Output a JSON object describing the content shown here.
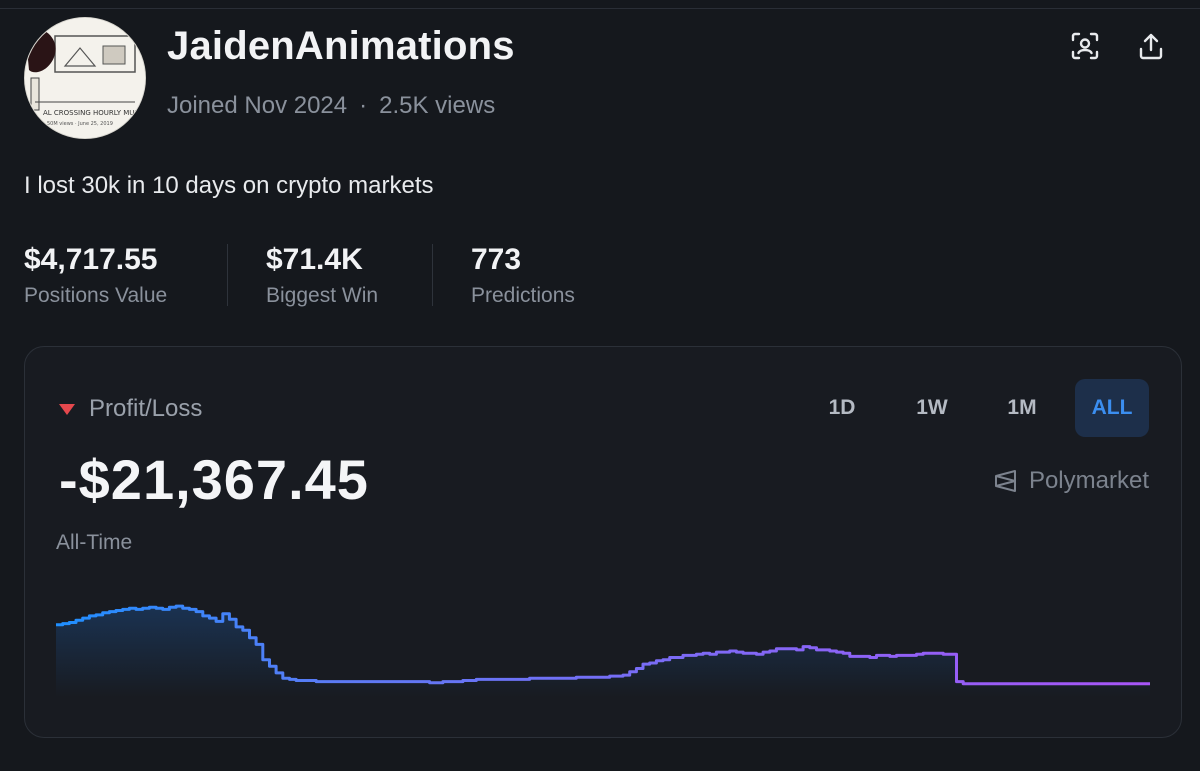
{
  "profile": {
    "username": "JaidenAnimations",
    "joined": "Joined Nov 2024",
    "views": "2.5K views",
    "bio": "I lost 30k in 10 days on crypto markets",
    "avatar_lines": [
      "AL CROSSING HOURLY MUSIC",
      "50M views · June 25, 2019"
    ]
  },
  "stats": [
    {
      "value": "$4,717.55",
      "label": "Positions Value"
    },
    {
      "value": "$71.4K",
      "label": "Biggest Win"
    },
    {
      "value": "773",
      "label": "Predictions"
    }
  ],
  "pnl": {
    "label": "Profit/Loss",
    "value": "-$21,367.45",
    "period": "All-Time",
    "brand": "Polymarket",
    "tabs": [
      "1D",
      "1W",
      "1M",
      "ALL"
    ],
    "active_tab": "ALL"
  },
  "colors": {
    "background": "#15181d",
    "loss_red": "#e5484d",
    "accent_blue": "#3b8ef0",
    "line_start": "#1f8fff",
    "line_end": "#a855f7"
  },
  "chart_data": {
    "type": "line",
    "title": "Profit/Loss All-Time",
    "xlabel": "",
    "ylabel": "",
    "ylim": [
      0,
      100
    ],
    "series": [
      {
        "name": "Profit/Loss",
        "values": [
          52,
          53,
          54,
          56,
          58,
          60,
          61,
          63,
          64,
          65,
          66,
          67,
          66,
          67,
          68,
          67,
          66,
          68,
          69,
          67,
          66,
          64,
          60,
          58,
          55,
          62,
          57,
          50,
          47,
          40,
          34,
          20,
          14,
          8,
          3,
          2,
          1,
          1,
          1,
          0,
          0,
          0,
          0,
          0,
          0,
          0,
          0,
          0,
          0,
          0,
          0,
          0,
          0,
          0,
          0,
          0,
          -1,
          -1,
          0,
          0,
          0,
          1,
          1,
          2,
          2,
          2,
          2,
          2,
          2,
          2,
          2,
          3,
          3,
          3,
          3,
          3,
          3,
          3,
          4,
          4,
          4,
          4,
          4,
          5,
          5,
          6,
          9,
          12,
          16,
          17,
          19,
          20,
          22,
          22,
          24,
          24,
          25,
          26,
          25,
          27,
          27,
          28,
          27,
          26,
          26,
          25,
          27,
          28,
          30,
          30,
          30,
          29,
          32,
          31,
          29,
          29,
          28,
          27,
          26,
          23,
          23,
          23,
          22,
          24,
          24,
          23,
          24,
          24,
          24,
          25,
          26,
          26,
          26,
          25,
          25,
          0,
          -2,
          -2,
          -2,
          -2,
          -2,
          -2,
          -2,
          -2,
          -2,
          -2,
          -2,
          -2,
          -2,
          -2,
          -2,
          -2,
          -2,
          -2,
          -2,
          -2,
          -2,
          -2,
          -2,
          -2,
          -2,
          -2,
          -2,
          -2,
          -2
        ]
      }
    ]
  }
}
